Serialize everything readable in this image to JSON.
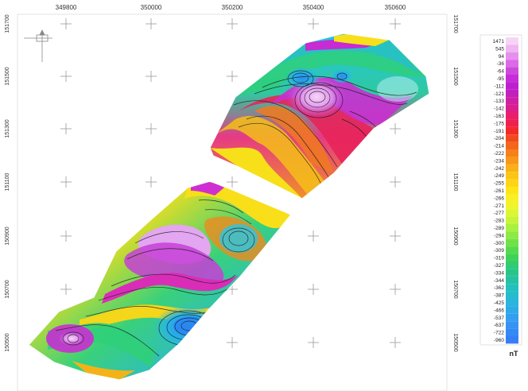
{
  "map": {
    "x_ticks": [
      "349800",
      "350000",
      "350200",
      "350400",
      "350600"
    ],
    "y_ticks_left": [
      "151700",
      "151500",
      "151300",
      "151100",
      "150900",
      "150700",
      "150500"
    ],
    "y_ticks_right": [
      "151700",
      "151500",
      "151300",
      "151100",
      "150900",
      "150700",
      "150500"
    ]
  },
  "legend": {
    "unit": "nT",
    "values": [
      "1471",
      "545",
      "94",
      "-36",
      "-64",
      "-95",
      "-112",
      "-121",
      "-133",
      "-142",
      "-163",
      "-175",
      "-191",
      "-204",
      "-214",
      "-222",
      "-234",
      "-242",
      "-249",
      "-255",
      "-261",
      "-266",
      "-271",
      "-277",
      "-283",
      "-289",
      "-294",
      "-300",
      "-309",
      "-319",
      "-327",
      "-334",
      "-344",
      "-362",
      "-387",
      "-425",
      "-466",
      "-537",
      "-637",
      "-722",
      "-960"
    ],
    "colors": [
      "#f7d4f7",
      "#efb6f2",
      "#e690ee",
      "#da6ae6",
      "#cf48de",
      "#c52dd6",
      "#bd1fd0",
      "#c21fbd",
      "#cf1fa5",
      "#db1f8a",
      "#e81f6e",
      "#f01f4e",
      "#f22a2a",
      "#f24a1f",
      "#f4661c",
      "#f6801a",
      "#f89818",
      "#fab016",
      "#fcc414",
      "#fed514",
      "#fee51a",
      "#f9ef22",
      "#eff52a",
      "#ddf632",
      "#c6f43a",
      "#aaf03f",
      "#8de944",
      "#6fe248",
      "#55da4c",
      "#3fd25a",
      "#30cb72",
      "#28c58b",
      "#25c1a4",
      "#24c0bc",
      "#26bcd0",
      "#2ab4de",
      "#2eaae8",
      "#329fef",
      "#3594f3",
      "#3689f5",
      "#377ef6"
    ]
  }
}
